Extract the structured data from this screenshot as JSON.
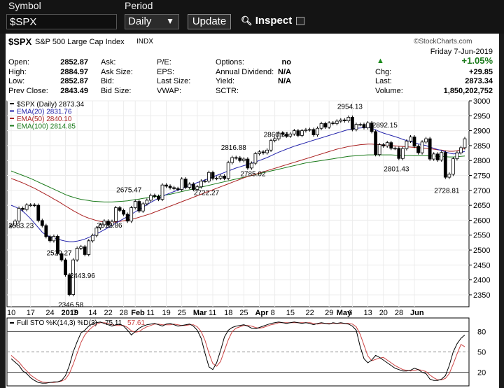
{
  "toolbar": {
    "symbol_label": "Symbol",
    "period_label": "Period",
    "symbol_value": "$SPX",
    "period_value": "Daily",
    "update_label": "Update",
    "inspect_label": "Inspect"
  },
  "header": {
    "ticker": "$SPX",
    "name": "S&P 500 Large Cap Index",
    "exchange": "INDX",
    "watermark": "©StockCharts.com",
    "date": "Friday 7-Jun-2019",
    "change_pct": "+1.05%",
    "stats_left": [
      {
        "label": "Open:",
        "value": "2852.87"
      },
      {
        "label": "High:",
        "value": "2884.97"
      },
      {
        "label": "Low:",
        "value": "2852.87"
      },
      {
        "label": "Prev Close:",
        "value": "2843.49"
      }
    ],
    "stats_mid": [
      {
        "label": "Ask:",
        "value": ""
      },
      {
        "label": "Ask Size:",
        "value": ""
      },
      {
        "label": "Bid:",
        "value": ""
      },
      {
        "label": "Bid Size:",
        "value": ""
      }
    ],
    "stats_mid2": [
      {
        "label": "P/E:",
        "value": ""
      },
      {
        "label": "EPS:",
        "value": ""
      },
      {
        "label": "Last Size:",
        "value": ""
      },
      {
        "label": "VWAP:",
        "value": ""
      }
    ],
    "stats_mid3": [
      {
        "label": "Options:",
        "value": "no"
      },
      {
        "label": "Annual Dividend:",
        "value": "N/A"
      },
      {
        "label": "Yield:",
        "value": "N/A"
      },
      {
        "label": "SCTR:",
        "value": ""
      }
    ],
    "stats_right": [
      {
        "label": "Chg:",
        "value": "+29.85"
      },
      {
        "label": "Last:",
        "value": "2873.34"
      },
      {
        "label": "Volume:",
        "value": "1,850,202,752"
      }
    ]
  },
  "chart_data": {
    "type": "line",
    "legend": [
      {
        "text": "$SPX (Daily) 2873.34",
        "color": "#000000"
      },
      {
        "text": "EMA(20) 2831.76",
        "color": "#2222aa"
      },
      {
        "text": "EMA(50) 2840.10",
        "color": "#aa2222"
      },
      {
        "text": "EMA(100) 2814.85",
        "color": "#1a7a1a"
      }
    ],
    "ylim": [
      2310,
      3000
    ],
    "y_ticks": [
      2350,
      2400,
      2450,
      2500,
      2550,
      2600,
      2650,
      2700,
      2750,
      2800,
      2850,
      2900,
      2950,
      3000
    ],
    "x_ticks": [
      {
        "i": 0,
        "label": "10"
      },
      {
        "i": 5,
        "label": "17"
      },
      {
        "i": 10,
        "label": "24"
      },
      {
        "i": 14,
        "label": "2019",
        "bold": true
      },
      {
        "i": 17,
        "label": "7"
      },
      {
        "i": 21,
        "label": "14"
      },
      {
        "i": 25,
        "label": "22"
      },
      {
        "i": 29,
        "label": "28"
      },
      {
        "i": 32,
        "label": "Feb",
        "bold": true
      },
      {
        "i": 36,
        "label": "11"
      },
      {
        "i": 40,
        "label": "19"
      },
      {
        "i": 44,
        "label": "25"
      },
      {
        "i": 48,
        "label": "Mar",
        "bold": true
      },
      {
        "i": 52,
        "label": "11"
      },
      {
        "i": 56,
        "label": "18"
      },
      {
        "i": 60,
        "label": "25"
      },
      {
        "i": 64,
        "label": "Apr",
        "bold": true
      },
      {
        "i": 68,
        "label": "8"
      },
      {
        "i": 72,
        "label": "15"
      },
      {
        "i": 77,
        "label": "22"
      },
      {
        "i": 82,
        "label": "29"
      },
      {
        "i": 85,
        "label": "May",
        "bold": true
      },
      {
        "i": 88,
        "label": "6"
      },
      {
        "i": 92,
        "label": "13"
      },
      {
        "i": 96,
        "label": "20"
      },
      {
        "i": 100,
        "label": "28"
      },
      {
        "i": 104,
        "label": "Jun",
        "bold": true
      }
    ],
    "close": [
      2584,
      2597,
      2640,
      2636,
      2651,
      2651,
      2650,
      2599,
      2582,
      2545,
      2531,
      2546,
      2488,
      2467,
      2417,
      2351,
      2467,
      2506,
      2511,
      2485,
      2531,
      2549,
      2574,
      2585,
      2597,
      2583,
      2596,
      2642,
      2633,
      2620,
      2597,
      2642,
      2663,
      2631,
      2655,
      2667,
      2683,
      2680,
      2670,
      2718,
      2714,
      2709,
      2706,
      2703,
      2738,
      2710,
      2721,
      2703,
      2712,
      2731,
      2731,
      2760,
      2740,
      2741,
      2748,
      2740,
      2793,
      2810,
      2809,
      2800,
      2805,
      2775,
      2791,
      2823,
      2829,
      2826,
      2835,
      2867,
      2873,
      2892,
      2888,
      2882,
      2889,
      2900,
      2884,
      2900,
      2903,
      2904,
      2886,
      2908,
      2924,
      2912,
      2926,
      2924,
      2932,
      2936,
      2933,
      2945,
      2904,
      2921,
      2921,
      2910,
      2926,
      2897,
      2820,
      2853,
      2849,
      2860,
      2841,
      2841,
      2807,
      2840,
      2865,
      2879,
      2848,
      2826,
      2862,
      2873,
      2805,
      2822,
      2802,
      2827,
      2744,
      2754,
      2806,
      2826,
      2843,
      2873
    ],
    "ema20": [
      2650,
      2645,
      2639,
      2630,
      2618,
      2605,
      2590,
      2575,
      2560,
      2550,
      2545,
      2540,
      2537,
      2533,
      2530,
      2528,
      2528,
      2530,
      2533,
      2537,
      2542,
      2548,
      2554,
      2561,
      2568,
      2575,
      2583,
      2590,
      2598,
      2605,
      2612,
      2620,
      2628,
      2636,
      2644,
      2652,
      2660,
      2667,
      2674,
      2680,
      2686,
      2691,
      2696,
      2701,
      2706,
      2711,
      2716,
      2721,
      2726,
      2730,
      2735,
      2740,
      2745,
      2750,
      2755,
      2760,
      2765,
      2770,
      2775,
      2779,
      2783,
      2787,
      2791,
      2795,
      2800,
      2805,
      2810,
      2816,
      2822,
      2828,
      2833,
      2838,
      2843,
      2848,
      2852,
      2856,
      2860,
      2864,
      2868,
      2872,
      2876,
      2880,
      2884,
      2888,
      2892,
      2896,
      2900,
      2904,
      2906,
      2908,
      2909,
      2910,
      2911,
      2908,
      2903,
      2897,
      2892,
      2888,
      2884,
      2880,
      2876,
      2871,
      2867,
      2864,
      2860,
      2856,
      2853,
      2850,
      2845,
      2841,
      2837,
      2834,
      2829,
      2825,
      2822,
      2823,
      2826,
      2831
    ],
    "ema50": [
      2740,
      2735,
      2730,
      2725,
      2719,
      2713,
      2707,
      2700,
      2693,
      2686,
      2679,
      2671,
      2664,
      2656,
      2648,
      2640,
      2632,
      2625,
      2618,
      2612,
      2607,
      2603,
      2599,
      2596,
      2594,
      2593,
      2593,
      2594,
      2596,
      2598,
      2600,
      2603,
      2606,
      2610,
      2614,
      2618,
      2622,
      2627,
      2632,
      2637,
      2642,
      2647,
      2652,
      2657,
      2662,
      2667,
      2672,
      2677,
      2682,
      2687,
      2692,
      2697,
      2702,
      2707,
      2712,
      2717,
      2722,
      2727,
      2732,
      2737,
      2742,
      2746,
      2750,
      2754,
      2758,
      2762,
      2766,
      2770,
      2774,
      2778,
      2782,
      2786,
      2790,
      2794,
      2798,
      2802,
      2806,
      2810,
      2814,
      2818,
      2822,
      2826,
      2830,
      2834,
      2838,
      2841,
      2844,
      2847,
      2849,
      2851,
      2853,
      2854,
      2855,
      2855,
      2854,
      2853,
      2852,
      2851,
      2850,
      2849,
      2848,
      2847,
      2846,
      2845,
      2844,
      2843,
      2842,
      2841,
      2840,
      2838,
      2836,
      2835,
      2833,
      2831,
      2831,
      2833,
      2837,
      2840
    ],
    "ema100": [
      2765,
      2760,
      2755,
      2750,
      2745,
      2740,
      2734,
      2728,
      2722,
      2716,
      2710,
      2704,
      2698,
      2692,
      2686,
      2681,
      2677,
      2673,
      2670,
      2668,
      2666,
      2664,
      2663,
      2662,
      2661,
      2661,
      2661,
      2662,
      2663,
      2664,
      2665,
      2667,
      2669,
      2671,
      2673,
      2675,
      2677,
      2679,
      2681,
      2683,
      2685,
      2687,
      2690,
      2693,
      2696,
      2699,
      2702,
      2705,
      2708,
      2711,
      2714,
      2717,
      2720,
      2723,
      2726,
      2729,
      2732,
      2735,
      2738,
      2741,
      2744,
      2747,
      2750,
      2753,
      2756,
      2759,
      2762,
      2765,
      2768,
      2771,
      2774,
      2777,
      2780,
      2783,
      2786,
      2789,
      2792,
      2794,
      2796,
      2798,
      2800,
      2802,
      2804,
      2806,
      2808,
      2810,
      2812,
      2814,
      2815,
      2816,
      2817,
      2818,
      2819,
      2819,
      2819,
      2819,
      2819,
      2819,
      2819,
      2818,
      2818,
      2817,
      2817,
      2817,
      2816,
      2816,
      2816,
      2816,
      2815,
      2815,
      2814,
      2814,
      2813,
      2812,
      2812,
      2813,
      2814,
      2815
    ],
    "annotations": [
      {
        "i": 0,
        "value": 2583.23,
        "text": "2583.23",
        "pos": "left"
      },
      {
        "i": 12,
        "value": 2520.27,
        "text": "2520.27",
        "pos": "below"
      },
      {
        "i": 15,
        "value": 2346.58,
        "text": "2346.58",
        "pos": "below"
      },
      {
        "i": 18,
        "value": 2443.96,
        "text": "2443.96",
        "pos": "below"
      },
      {
        "i": 25,
        "value": 2612.86,
        "text": "2612.86",
        "pos": "below"
      },
      {
        "i": 30,
        "value": 2675.47,
        "text": "2675.47",
        "pos": "above"
      },
      {
        "i": 50,
        "value": 2722.27,
        "text": "2722.27",
        "pos": "below"
      },
      {
        "i": 57,
        "value": 2816.88,
        "text": "2816.88",
        "pos": "above"
      },
      {
        "i": 62,
        "value": 2785.02,
        "text": "2785.02",
        "pos": "below"
      },
      {
        "i": 68,
        "value": 2860.31,
        "text": "2860.31",
        "pos": "above"
      },
      {
        "i": 87,
        "value": 2954.13,
        "text": "2954.13",
        "pos": "above"
      },
      {
        "i": 96,
        "value": 2892.15,
        "text": "2892.15",
        "pos": "above"
      },
      {
        "i": 99,
        "value": 2801.43,
        "text": "2801.43",
        "pos": "below"
      },
      {
        "i": 112,
        "value": 2728.81,
        "text": "2728.81",
        "pos": "below"
      }
    ]
  },
  "stochastic": {
    "legend_name": "Full STO %K(14,3) %D(3)",
    "k_value": "75.11",
    "d_value": "57.61",
    "ylim": [
      0,
      100
    ],
    "y_ticks": [
      20,
      50,
      80
    ],
    "k": [
      40,
      35,
      30,
      22,
      18,
      12,
      8,
      5,
      4,
      4,
      5,
      6,
      6,
      8,
      15,
      30,
      50,
      65,
      78,
      82,
      88,
      92,
      93,
      94,
      92,
      90,
      88,
      90,
      91,
      88,
      82,
      75,
      80,
      85,
      88,
      90,
      91,
      92,
      90,
      88,
      91,
      92,
      90,
      88,
      89,
      90,
      91,
      88,
      82,
      70,
      48,
      28,
      24,
      34,
      52,
      72,
      82,
      86,
      88,
      89,
      90,
      88,
      85,
      84,
      86,
      88,
      90,
      92,
      93,
      94,
      93,
      92,
      93,
      94,
      93,
      92,
      93,
      92,
      90,
      92,
      93,
      92,
      91,
      93,
      92,
      93,
      92,
      91,
      88,
      82,
      58,
      40,
      34,
      38,
      45,
      42,
      38,
      34,
      30,
      26,
      24,
      22,
      22,
      23,
      26,
      24,
      20,
      18,
      10,
      8,
      8,
      10,
      15,
      30,
      50,
      62,
      70,
      75
    ],
    "d": [
      45,
      40,
      35,
      28,
      22,
      16,
      12,
      8,
      6,
      5,
      5,
      5,
      6,
      7,
      10,
      18,
      32,
      48,
      64,
      75,
      82,
      87,
      91,
      93,
      93,
      92,
      90,
      89,
      89,
      89,
      86,
      81,
      79,
      80,
      84,
      87,
      89,
      91,
      91,
      90,
      90,
      90,
      91,
      90,
      89,
      89,
      90,
      90,
      87,
      80,
      67,
      48,
      33,
      29,
      36,
      52,
      68,
      80,
      85,
      87,
      89,
      89,
      88,
      86,
      85,
      86,
      88,
      90,
      91,
      93,
      93,
      93,
      93,
      93,
      93,
      93,
      93,
      93,
      92,
      91,
      92,
      92,
      92,
      92,
      92,
      92,
      92,
      92,
      91,
      87,
      76,
      60,
      44,
      37,
      39,
      41,
      42,
      38,
      34,
      30,
      27,
      24,
      23,
      22,
      23,
      24,
      23,
      21,
      16,
      12,
      9,
      9,
      11,
      18,
      32,
      47,
      61,
      57.61
    ]
  }
}
